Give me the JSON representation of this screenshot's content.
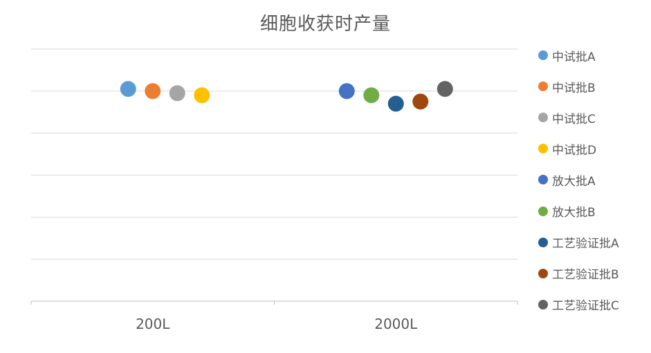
{
  "chart_data": {
    "type": "scatter",
    "title": "细胞收获时产量",
    "xlabel": "",
    "ylabel": "",
    "categories": [
      "200L",
      "2000L"
    ],
    "ylim": [
      0,
      6
    ],
    "grid": true,
    "show_y_tick_labels": false,
    "legend_position": "right",
    "series": [
      {
        "name": "中试批A",
        "category": "200L",
        "value": 5.05,
        "color": "#5B9BD5"
      },
      {
        "name": "中试批B",
        "category": "200L",
        "value": 5.0,
        "color": "#ED7D31"
      },
      {
        "name": "中试批C",
        "category": "200L",
        "value": 4.95,
        "color": "#A5A5A5"
      },
      {
        "name": "中试批D",
        "category": "200L",
        "value": 4.9,
        "color": "#FFC000"
      },
      {
        "name": "放大批A",
        "category": "2000L",
        "value": 5.0,
        "color": "#4472C4"
      },
      {
        "name": "放大批B",
        "category": "2000L",
        "value": 4.9,
        "color": "#70AD47"
      },
      {
        "name": "工艺验证批A",
        "category": "2000L",
        "value": 4.7,
        "color": "#255E91"
      },
      {
        "name": "工艺验证批B",
        "category": "2000L",
        "value": 4.75,
        "color": "#9E480E"
      },
      {
        "name": "工艺验证批C",
        "category": "2000L",
        "value": 5.05,
        "color": "#636363"
      }
    ]
  }
}
